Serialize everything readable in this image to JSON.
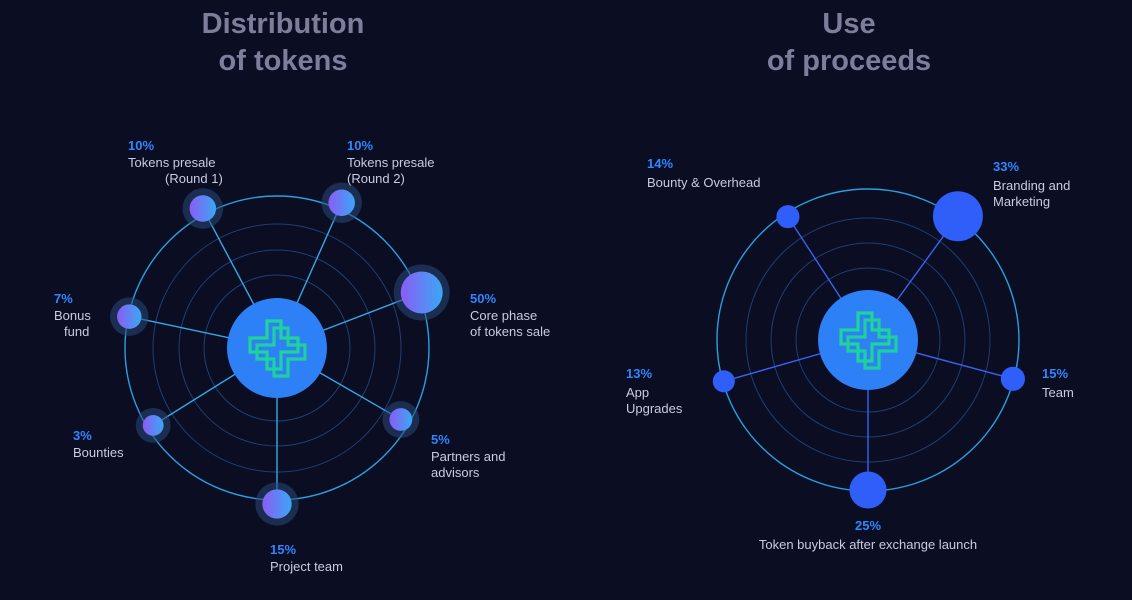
{
  "colors": {
    "background": "#0b0d22",
    "title": "#7e7d9c",
    "percent": "#2f86ff",
    "label": "#c9cbe0",
    "ring": "#2a9fe0",
    "inner_ring": "#1f3f72",
    "center": "#2d80f5",
    "logo": "#1fd49a",
    "node_left_from": "#8a5cf5",
    "node_left_to": "#3aa7f5",
    "node_right": "#2f5ef8"
  },
  "icons": {
    "center_logo": "medical-cross-logo-icon"
  },
  "left_chart": {
    "title_line1": "Distribution",
    "title_line2": "of tokens"
  },
  "right_chart": {
    "title_line1": "Use",
    "title_line2": "of proceeds"
  },
  "chart_data": [
    {
      "type": "radial",
      "title": "Distribution of tokens",
      "slices": [
        {
          "percent": "10%",
          "value": 10,
          "label_lines": [
            "Tokens presale",
            "(Round 1)"
          ]
        },
        {
          "percent": "10%",
          "value": 10,
          "label_lines": [
            "Tokens presale",
            "(Round 2)"
          ]
        },
        {
          "percent": "50%",
          "value": 50,
          "label_lines": [
            "Core phase",
            "of tokens sale"
          ]
        },
        {
          "percent": "5%",
          "value": 5,
          "label_lines": [
            "Partners and",
            "advisors"
          ]
        },
        {
          "percent": "15%",
          "value": 15,
          "label_lines": [
            "Project team"
          ]
        },
        {
          "percent": "3%",
          "value": 3,
          "label_lines": [
            "Bounties"
          ]
        },
        {
          "percent": "7%",
          "value": 7,
          "label_lines": [
            "Bonus",
            "fund"
          ]
        }
      ]
    },
    {
      "type": "radial",
      "title": "Use of proceeds",
      "slices": [
        {
          "percent": "14%",
          "value": 14,
          "label_lines": [
            "Bounty & Overhead"
          ]
        },
        {
          "percent": "33%",
          "value": 33,
          "label_lines": [
            "Branding and",
            "Marketing"
          ]
        },
        {
          "percent": "15%",
          "value": 15,
          "label_lines": [
            "Team"
          ]
        },
        {
          "percent": "25%",
          "value": 25,
          "label_lines": [
            "Token buyback after exchange launch"
          ]
        },
        {
          "percent": "13%",
          "value": 13,
          "label_lines": [
            "App",
            "Upgrades"
          ]
        }
      ]
    }
  ]
}
